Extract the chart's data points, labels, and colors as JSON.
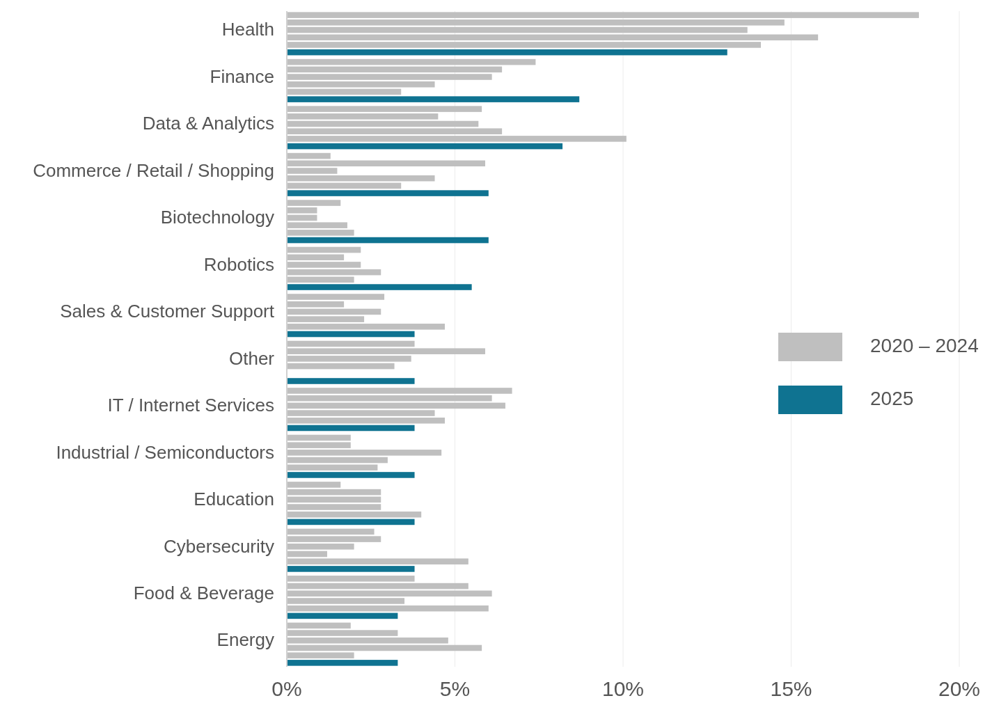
{
  "chart_data": {
    "type": "bar",
    "orientation": "horizontal",
    "categories": [
      "Health",
      "Finance",
      "Data & Analytics",
      "Commerce / Retail / Shopping",
      "Biotechnology",
      "Robotics",
      "Sales & Customer Support",
      "Other",
      "IT / Internet Services",
      "Industrial / Semiconductors",
      "Education",
      "Cybersecurity",
      "Food & Beverage",
      "Energy"
    ],
    "series": [
      {
        "name": "2020 – 2024",
        "color": "#bfbfbf",
        "values": [
          18.8,
          7.4,
          5.8,
          1.3,
          1.6,
          2.2,
          2.9,
          3.8,
          6.7,
          1.9,
          1.6,
          2.6,
          3.8,
          1.9
        ]
      },
      {
        "color": "#bfbfbf",
        "values": [
          14.8,
          6.4,
          4.5,
          5.9,
          0.9,
          1.7,
          1.7,
          5.9,
          6.1,
          1.9,
          2.8,
          2.8,
          5.4,
          3.3
        ]
      },
      {
        "color": "#bfbfbf",
        "values": [
          13.7,
          6.1,
          5.7,
          1.5,
          0.9,
          2.2,
          2.8,
          3.7,
          6.5,
          4.6,
          2.8,
          2.0,
          6.1,
          4.8
        ]
      },
      {
        "color": "#bfbfbf",
        "values": [
          15.8,
          4.4,
          6.4,
          4.4,
          1.8,
          2.8,
          2.3,
          3.2,
          4.4,
          3.0,
          2.8,
          1.2,
          3.5,
          5.8
        ]
      },
      {
        "color": "#bfbfbf",
        "values": [
          14.1,
          3.4,
          10.1,
          3.4,
          2.0,
          2.0,
          4.7,
          null,
          4.7,
          2.7,
          4.0,
          5.4,
          6.0,
          2.0
        ]
      },
      {
        "name": "2025",
        "color": "#0f7391",
        "values": [
          13.1,
          8.7,
          8.2,
          6.0,
          6.0,
          5.5,
          3.8,
          3.8,
          3.8,
          3.8,
          3.8,
          3.8,
          3.3,
          3.3
        ]
      }
    ],
    "xlim": [
      0,
      20
    ],
    "xticks": [
      {
        "value": 0,
        "label": "0%"
      },
      {
        "value": 5,
        "label": "5%"
      },
      {
        "value": 10,
        "label": "10%"
      },
      {
        "value": 15,
        "label": "15%"
      },
      {
        "value": 20,
        "label": "20%"
      }
    ],
    "grid": "x",
    "legend": "right"
  }
}
